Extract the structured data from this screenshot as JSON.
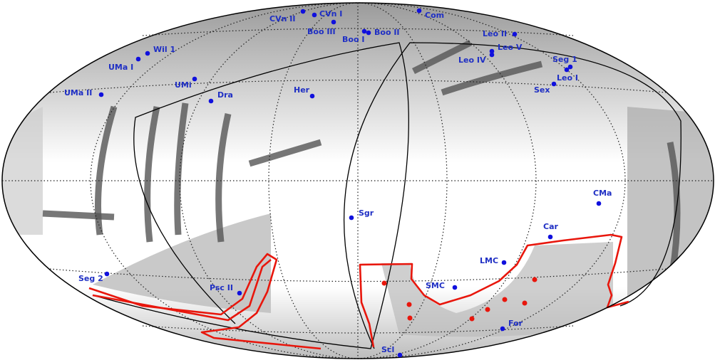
{
  "objects": [
    "CVn II",
    "CVn I",
    "Com",
    "Boo III",
    "Boo II",
    "Boo I",
    "Leo II",
    "Leo V",
    "Leo IV",
    "Seg 1",
    "Leo I",
    "Sex",
    "Wil 1",
    "UMa I",
    "UMi",
    "UMa II",
    "Dra",
    "Her",
    "Sgr",
    "CMa",
    "Car",
    "LMC",
    "SMC",
    "Seg 2",
    "Psc II",
    "For",
    "Scl"
  ]
}
